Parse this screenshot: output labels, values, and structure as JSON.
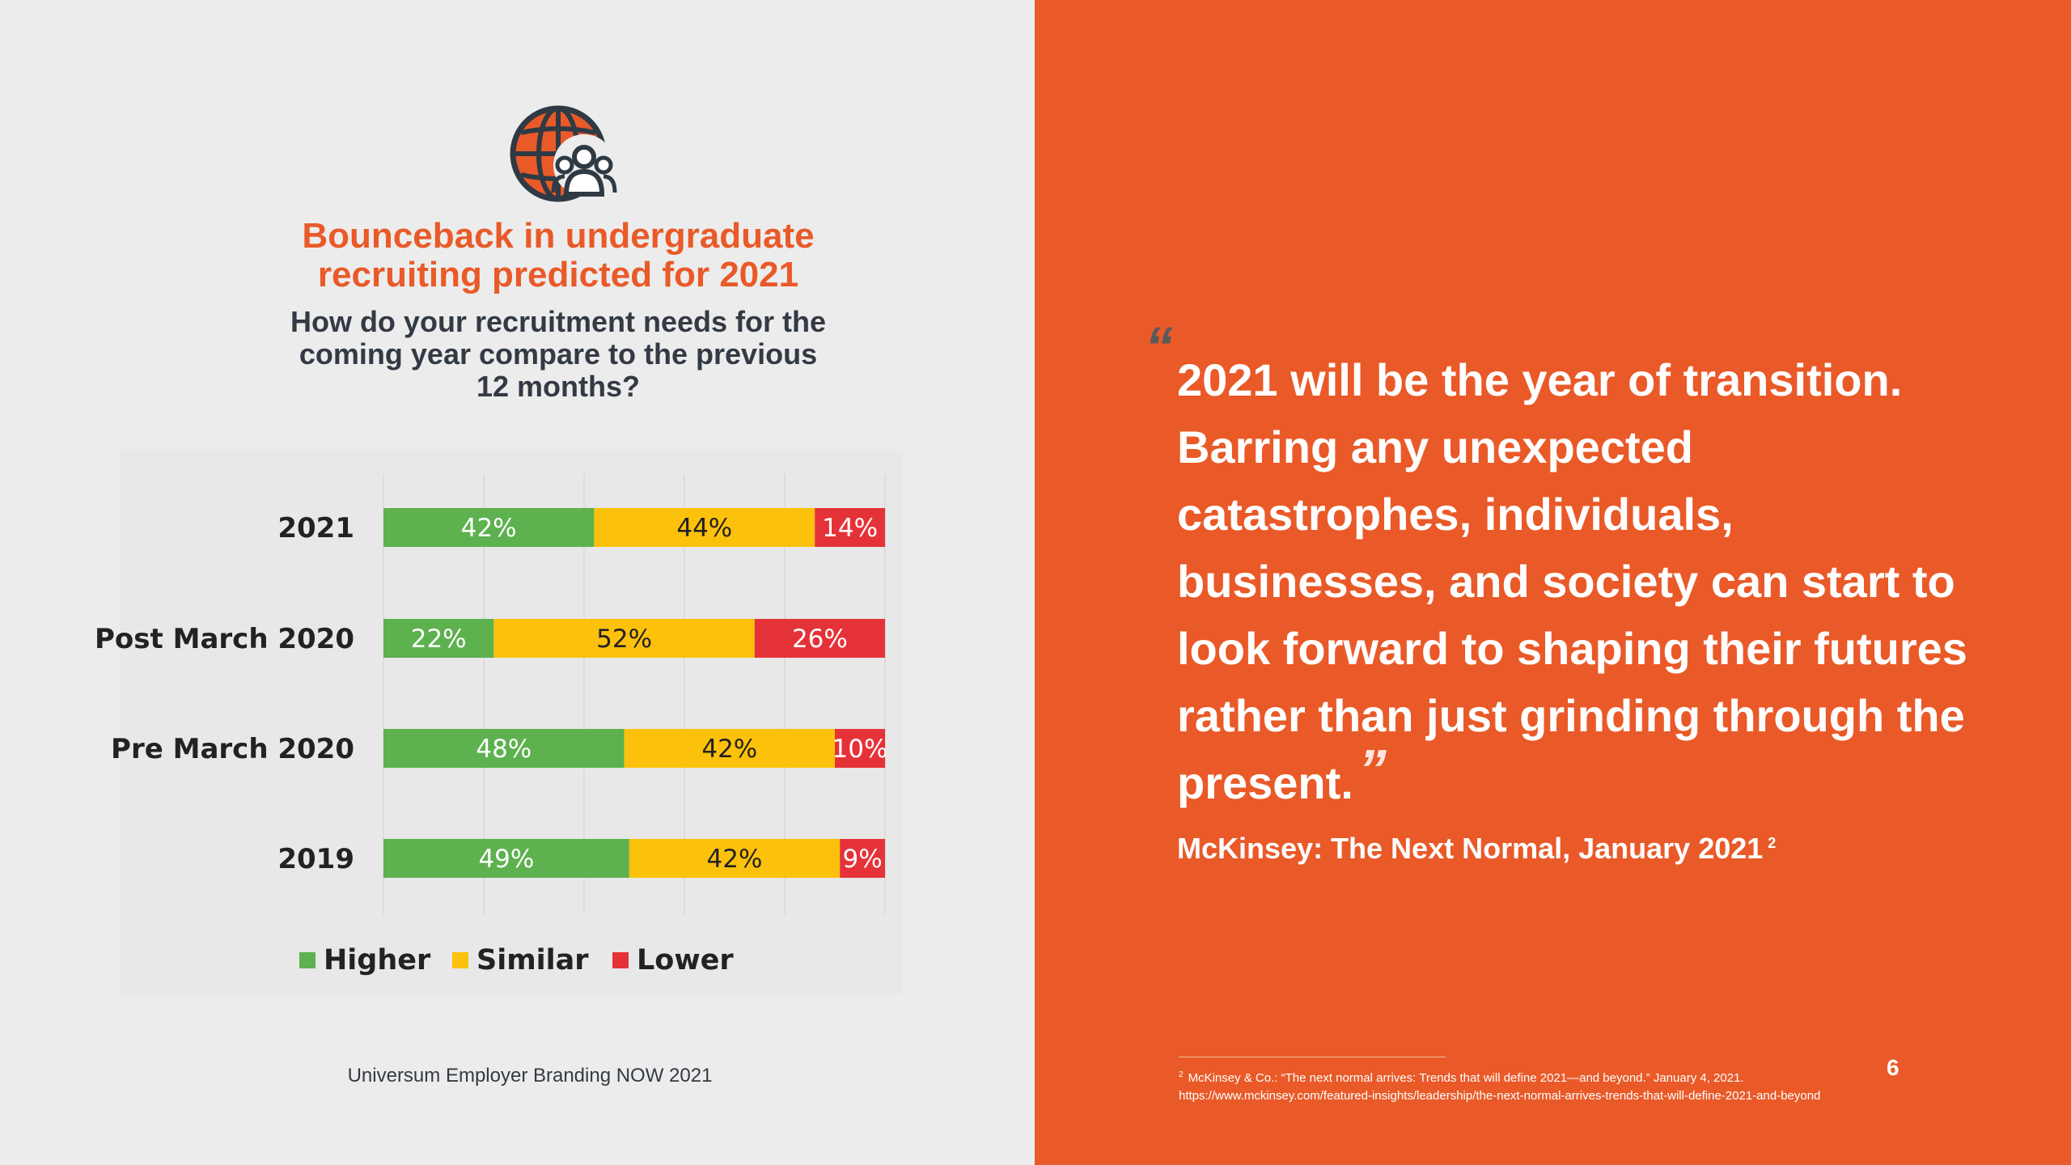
{
  "header": {
    "title_line1": "Bounceback in undergraduate",
    "title_line2": "recruiting predicted for 2021",
    "subtitle_line1": "How do your recruitment needs for the",
    "subtitle_line2": "coming year compare to the previous",
    "subtitle_line3": "12 months?",
    "icon": "globe-people-icon"
  },
  "chart_data": {
    "type": "bar",
    "orientation": "horizontal",
    "stacked": true,
    "categories": [
      "2021",
      "Post March 2020",
      "Pre March 2020",
      "2019"
    ],
    "series": [
      {
        "name": "Higher",
        "values": [
          42,
          22,
          48,
          49
        ],
        "color": "#5db14e"
      },
      {
        "name": "Similar",
        "values": [
          44,
          52,
          42,
          42
        ],
        "color": "#fcc10b"
      },
      {
        "name": "Lower",
        "values": [
          14,
          26,
          10,
          9
        ],
        "color": "#e53238"
      }
    ],
    "value_suffix": "%",
    "xlim": [
      0,
      100
    ],
    "grid": true,
    "legend": "bottom",
    "title": "",
    "xlabel": "",
    "ylabel": ""
  },
  "source": "Universum Employer Branding NOW 2021",
  "quote": {
    "open_mark": "“",
    "text": "2021 will be the year of transition. Barring any unexpected catastrophes, individuals, businesses, and society can start to look forward to shaping their futures rather than just grinding through the present.",
    "close_mark": "”",
    "attribution": "McKinsey: The Next Normal, January 2021",
    "attribution_ref": "2"
  },
  "footnote": {
    "ref": "2",
    "line1": "McKinsey & Co.: “The next normal arrives: Trends that will define 2021—and beyond.” January 4, 2021.",
    "line2": "https://www.mckinsey.com/featured-insights/leadership/the-next-normal-arrives-trends-that-will-define-2021-and-beyond"
  },
  "page_number": "6",
  "colors": {
    "accent": "#e95a28",
    "dark_text": "#333a44",
    "higher": "#5db14e",
    "similar": "#fcc10b",
    "lower": "#e53238"
  }
}
